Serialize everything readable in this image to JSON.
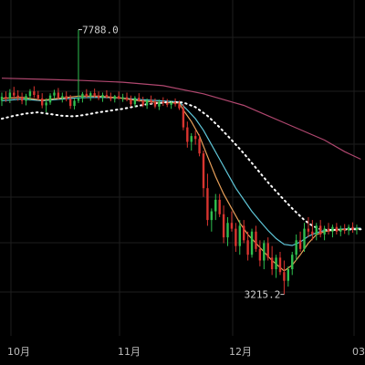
{
  "chart_data": {
    "type": "candlestick",
    "x_ticks": [
      "10月",
      "11月",
      "12月",
      "03"
    ],
    "annotations": {
      "high": "7788.0",
      "low": "3215.2"
    },
    "high_value": 7788.0,
    "low_value": 3215.2,
    "ylim": [
      2500,
      8300
    ],
    "grid": true,
    "colors": {
      "background": "#000000",
      "grid": "#1e1e1e",
      "up": "#2fbf4f",
      "down": "#d9342f",
      "ma_fast": "#e8a05a",
      "ma_medium": "#5fc6d8",
      "ma_slow": "#b0476f",
      "ma_dotted": "#ffffff",
      "label": "#bdbdbd"
    },
    "candles": [
      [
        6560,
        6700,
        6470,
        6630
      ],
      [
        6630,
        6720,
        6540,
        6600
      ],
      [
        6600,
        6760,
        6520,
        6700
      ],
      [
        6700,
        6800,
        6590,
        6650
      ],
      [
        6650,
        6740,
        6560,
        6620
      ],
      [
        6620,
        6700,
        6500,
        6560
      ],
      [
        6560,
        6680,
        6480,
        6640
      ],
      [
        6640,
        6760,
        6560,
        6720
      ],
      [
        6720,
        6810,
        6610,
        6660
      ],
      [
        6660,
        6730,
        6570,
        6600
      ],
      [
        6600,
        6690,
        6430,
        6480
      ],
      [
        6480,
        6600,
        6360,
        6530
      ],
      [
        6530,
        6690,
        6490,
        6650
      ],
      [
        6650,
        6750,
        6590,
        6700
      ],
      [
        6700,
        6780,
        6580,
        6610
      ],
      [
        6610,
        6700,
        6530,
        6640
      ],
      [
        6640,
        6720,
        6550,
        6590
      ],
      [
        6590,
        6660,
        6420,
        6470
      ],
      [
        6470,
        6600,
        6410,
        6560
      ],
      [
        6560,
        7788,
        6520,
        6600
      ],
      [
        6600,
        6710,
        6530,
        6680
      ],
      [
        6680,
        6760,
        6600,
        6640
      ],
      [
        6640,
        6720,
        6560,
        6690
      ],
      [
        6690,
        6770,
        6610,
        6650
      ],
      [
        6650,
        6720,
        6570,
        6610
      ],
      [
        6610,
        6700,
        6540,
        6660
      ],
      [
        6660,
        6740,
        6600,
        6620
      ],
      [
        6620,
        6700,
        6550,
        6590
      ],
      [
        6590,
        6660,
        6530,
        6640
      ],
      [
        6640,
        6720,
        6580,
        6600
      ],
      [
        6600,
        6680,
        6540,
        6620
      ],
      [
        6620,
        6700,
        6550,
        6580
      ],
      [
        6580,
        6650,
        6460,
        6500
      ],
      [
        6500,
        6640,
        6450,
        6610
      ],
      [
        6610,
        6690,
        6540,
        6560
      ],
      [
        6560,
        6630,
        6450,
        6480
      ],
      [
        6480,
        6600,
        6420,
        6570
      ],
      [
        6570,
        6650,
        6500,
        6540
      ],
      [
        6540,
        6600,
        6430,
        6460
      ],
      [
        6460,
        6580,
        6400,
        6540
      ],
      [
        6540,
        6620,
        6470,
        6520
      ],
      [
        6520,
        6590,
        6450,
        6490
      ],
      [
        6490,
        6560,
        6420,
        6530
      ],
      [
        6530,
        6600,
        6460,
        6500
      ],
      [
        6500,
        6560,
        6400,
        6430
      ],
      [
        6430,
        6500,
        6050,
        6100
      ],
      [
        6100,
        6200,
        5750,
        5850
      ],
      [
        5850,
        6000,
        5700,
        5950
      ],
      [
        5950,
        6050,
        5800,
        5900
      ],
      [
        5900,
        5980,
        5600,
        5650
      ],
      [
        5650,
        5700,
        4900,
        5050
      ],
      [
        5050,
        5300,
        4400,
        4500
      ],
      [
        4500,
        4700,
        4300,
        4650
      ],
      [
        4650,
        4950,
        4500,
        4850
      ],
      [
        4850,
        4950,
        4550,
        4600
      ],
      [
        4600,
        4750,
        4100,
        4200
      ],
      [
        4200,
        4550,
        4050,
        4450
      ],
      [
        4450,
        4650,
        4300,
        4350
      ],
      [
        4350,
        4450,
        3950,
        4050
      ],
      [
        4050,
        4500,
        3900,
        4400
      ],
      [
        4400,
        4500,
        4100,
        4150
      ],
      [
        4150,
        4300,
        3800,
        3900
      ],
      [
        3900,
        4350,
        3850,
        4300
      ],
      [
        4300,
        4400,
        3950,
        4000
      ],
      [
        4000,
        4150,
        3700,
        3800
      ],
      [
        3800,
        4150,
        3650,
        4100
      ],
      [
        4100,
        4200,
        3800,
        3850
      ],
      [
        3850,
        4050,
        3550,
        3650
      ],
      [
        3650,
        3900,
        3500,
        3850
      ],
      [
        3850,
        3950,
        3550,
        3600
      ],
      [
        3600,
        3800,
        3215.2,
        3450
      ],
      [
        3450,
        3700,
        3350,
        3650
      ],
      [
        3650,
        3950,
        3550,
        3900
      ],
      [
        3900,
        4250,
        3800,
        4150
      ],
      [
        4150,
        4300,
        3950,
        4000
      ],
      [
        4000,
        4450,
        3950,
        4350
      ],
      [
        4350,
        4550,
        4200,
        4300
      ],
      [
        4300,
        4500,
        4150,
        4250
      ],
      [
        4250,
        4450,
        4150,
        4400
      ],
      [
        4400,
        4500,
        4200,
        4250
      ],
      [
        4250,
        4400,
        4150,
        4350
      ],
      [
        4350,
        4450,
        4250,
        4300
      ],
      [
        4300,
        4420,
        4200,
        4380
      ],
      [
        4380,
        4450,
        4250,
        4300
      ],
      [
        4300,
        4400,
        4220,
        4350
      ],
      [
        4350,
        4430,
        4260,
        4320
      ],
      [
        4320,
        4420,
        4240,
        4380
      ],
      [
        4380,
        4460,
        4280,
        4330
      ],
      [
        4330,
        4420,
        4250,
        4360
      ]
    ],
    "ma_slow": [
      [
        0,
        6950
      ],
      [
        10,
        6930
      ],
      [
        20,
        6910
      ],
      [
        30,
        6880
      ],
      [
        40,
        6820
      ],
      [
        50,
        6680
      ],
      [
        60,
        6480
      ],
      [
        70,
        6180
      ],
      [
        80,
        5880
      ],
      [
        85,
        5680
      ],
      [
        89,
        5550
      ]
    ],
    "ma_dotted": [
      [
        0,
        6250
      ],
      [
        3,
        6300
      ],
      [
        6,
        6340
      ],
      [
        9,
        6360
      ],
      [
        12,
        6330
      ],
      [
        15,
        6300
      ],
      [
        18,
        6290
      ],
      [
        21,
        6320
      ],
      [
        24,
        6360
      ],
      [
        27,
        6390
      ],
      [
        30,
        6420
      ],
      [
        33,
        6460
      ],
      [
        36,
        6500
      ],
      [
        39,
        6520
      ],
      [
        42,
        6540
      ],
      [
        45,
        6530
      ],
      [
        48,
        6450
      ],
      [
        51,
        6300
      ],
      [
        54,
        6100
      ],
      [
        57,
        5880
      ],
      [
        60,
        5650
      ],
      [
        63,
        5400
      ],
      [
        66,
        5150
      ],
      [
        69,
        4920
      ],
      [
        72,
        4700
      ],
      [
        75,
        4500
      ],
      [
        77,
        4400
      ],
      [
        79,
        4340
      ],
      [
        81,
        4330
      ],
      [
        84,
        4330
      ],
      [
        87,
        4340
      ],
      [
        89,
        4340
      ]
    ],
    "ma_medium": [
      [
        0,
        6560
      ],
      [
        5,
        6590
      ],
      [
        10,
        6560
      ],
      [
        15,
        6590
      ],
      [
        19,
        6610
      ],
      [
        24,
        6620
      ],
      [
        29,
        6610
      ],
      [
        34,
        6580
      ],
      [
        39,
        6560
      ],
      [
        44,
        6540
      ],
      [
        46,
        6400
      ],
      [
        48,
        6250
      ],
      [
        50,
        6050
      ],
      [
        52,
        5800
      ],
      [
        54,
        5550
      ],
      [
        56,
        5300
      ],
      [
        58,
        5050
      ],
      [
        60,
        4850
      ],
      [
        62,
        4650
      ],
      [
        64,
        4480
      ],
      [
        66,
        4320
      ],
      [
        68,
        4180
      ],
      [
        70,
        4080
      ],
      [
        72,
        4060
      ],
      [
        74,
        4120
      ],
      [
        76,
        4220
      ],
      [
        78,
        4280
      ],
      [
        80,
        4320
      ],
      [
        83,
        4340
      ],
      [
        86,
        4350
      ],
      [
        89,
        4360
      ]
    ],
    "ma_fast": [
      [
        0,
        6600
      ],
      [
        5,
        6620
      ],
      [
        10,
        6570
      ],
      [
        14,
        6600
      ],
      [
        19,
        6640
      ],
      [
        24,
        6640
      ],
      [
        29,
        6610
      ],
      [
        34,
        6560
      ],
      [
        39,
        6530
      ],
      [
        44,
        6520
      ],
      [
        45,
        6400
      ],
      [
        47,
        6200
      ],
      [
        49,
        5950
      ],
      [
        51,
        5600
      ],
      [
        53,
        5250
      ],
      [
        55,
        4950
      ],
      [
        57,
        4700
      ],
      [
        59,
        4450
      ],
      [
        61,
        4250
      ],
      [
        63,
        4100
      ],
      [
        65,
        3950
      ],
      [
        67,
        3800
      ],
      [
        69,
        3680
      ],
      [
        70,
        3620
      ],
      [
        72,
        3720
      ],
      [
        74,
        3900
      ],
      [
        76,
        4100
      ],
      [
        78,
        4250
      ],
      [
        80,
        4300
      ],
      [
        83,
        4330
      ],
      [
        86,
        4340
      ],
      [
        89,
        4350
      ]
    ]
  }
}
